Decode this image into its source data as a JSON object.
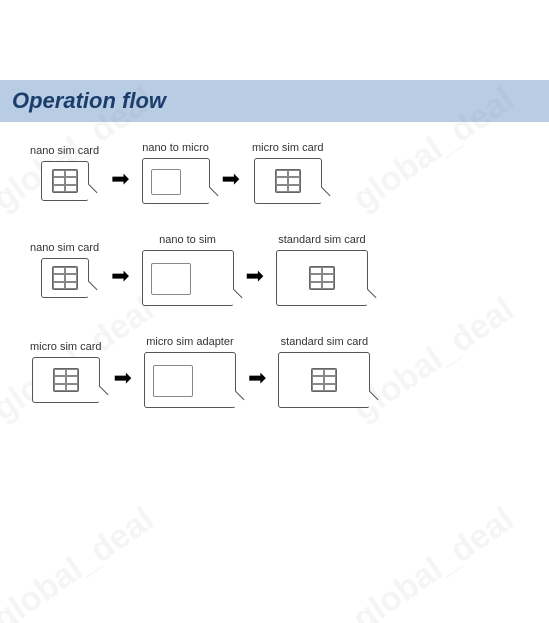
{
  "header": {
    "title": "Operation flow"
  },
  "watermark": {
    "text": "global_deal"
  },
  "rows": [
    {
      "cells": [
        {
          "label": "nano sim card",
          "size": "small",
          "hasChip": true
        },
        {
          "label": "nano to micro",
          "size": "medium",
          "hasFrame": true
        },
        {
          "label": "micro sim card",
          "size": "medium",
          "hasChip": true
        }
      ]
    },
    {
      "cells": [
        {
          "label": "nano sim card",
          "size": "small",
          "hasChip": true
        },
        {
          "label": "nano to sim",
          "size": "large",
          "hasFrame": true
        },
        {
          "label": "standard sim card",
          "size": "large",
          "hasChip": true
        }
      ]
    },
    {
      "cells": [
        {
          "label": "micro sim card",
          "size": "medium",
          "hasChip": true
        },
        {
          "label": "micro sim adapter",
          "size": "large",
          "hasFrame": true
        },
        {
          "label": "standard sim card",
          "size": "large",
          "hasChip": true
        }
      ]
    }
  ],
  "colors": {
    "headerBg": "#b8cce4",
    "headerText": "#1a3d6b",
    "border": "#555"
  }
}
